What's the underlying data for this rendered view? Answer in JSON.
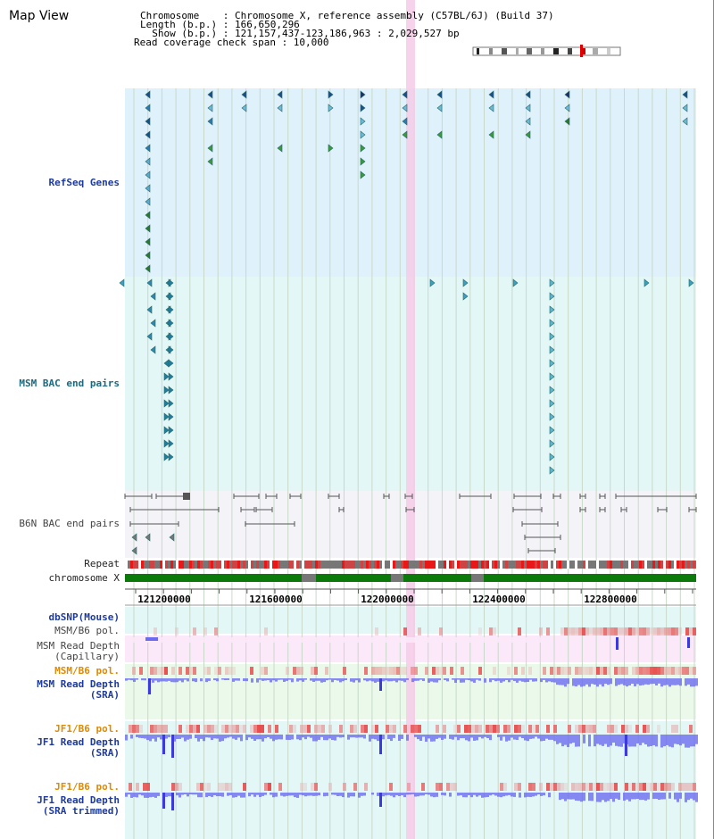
{
  "panel_title": "Map View",
  "header": {
    "chromosome_line": "Chromosome    : Chromosome X, reference assembly (C57BL/6J) (Build 37)",
    "length_line": "Length (b.p.) : 166,650,296",
    "show_line": "  Show (b.p.) : 121,157,437-123,186,963 : 2,029,527 bp",
    "coverage_line": "Read coverage check span : 10,000"
  },
  "tracks": {
    "refseq": "RefSeq Genes",
    "msm_bac": "MSM BAC end pairs",
    "b6n_bac": "B6N BAC end pairs",
    "repeat": "Repeat",
    "chromosome": "chromosome X",
    "dbsnp": "dbSNP(Mouse)",
    "msm_b6_pol_1": "MSM/B6 pol.",
    "msm_depth_cap": "MSM Read Depth\n(Capillary)",
    "msm_b6_pol_2": "MSM/B6 pol.",
    "msm_depth_sra": "MSM Read Depth\n(SRA)",
    "jf1_b6_pol_1": "JF1/B6 pol.",
    "jf1_depth_sra": "JF1 Read Depth\n(SRA)",
    "jf1_b6_pol_2": "JF1/B6 pol.",
    "jf1_depth_trim": "JF1 Read Depth\n(SRA trimmed)"
  },
  "axis": {
    "ticks": [
      "121200000",
      "121600000",
      "122000000",
      "122400000",
      "122800000"
    ]
  },
  "colors": {
    "refseq_bg": "#dff1fb",
    "bac_bg": "#e3f7f7",
    "b6n_bg": "#f4f4f8",
    "highlight": "#f6cbe8",
    "msm_cap_bg": "#fbe8f8",
    "msm_sra_bg": "#eaf9ea",
    "jf1_bg": "#e3f7f7",
    "chromosome": "#0b7a0b",
    "depth": "#6b6bef",
    "pol": "#ef4b4b"
  }
}
